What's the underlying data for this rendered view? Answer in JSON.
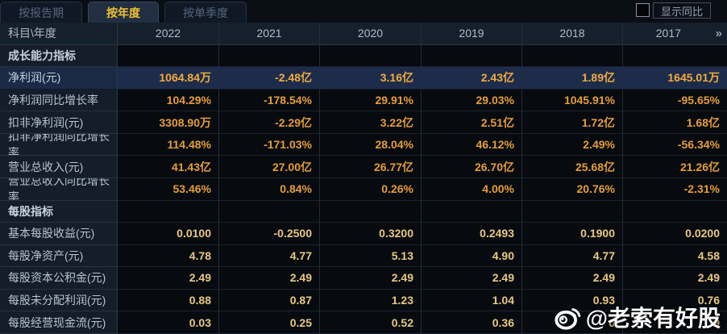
{
  "tabs": {
    "items": [
      {
        "label": "按报告期",
        "active": false
      },
      {
        "label": "按年度",
        "active": true
      },
      {
        "label": "按单季度",
        "active": false
      }
    ]
  },
  "controls": {
    "show_yoy_label": "显示同比",
    "checkbox_checked": false
  },
  "table": {
    "corner_label": "科目\\年度",
    "years": [
      "2022",
      "2021",
      "2020",
      "2019",
      "2018",
      "2017"
    ],
    "more_years_icon": "»",
    "rows": [
      {
        "type": "section",
        "label": "成长能力指标",
        "values": [
          "",
          "",
          "",
          "",
          "",
          ""
        ]
      },
      {
        "type": "highlight",
        "label": "净利润(元)",
        "values": [
          "1064.84万",
          "-2.48亿",
          "3.16亿",
          "2.43亿",
          "1.89亿",
          "1645.01万"
        ]
      },
      {
        "type": "growth",
        "label": "净利润同比增长率",
        "values": [
          "104.29%",
          "-178.54%",
          "29.91%",
          "29.03%",
          "1045.91%",
          "-95.65%"
        ]
      },
      {
        "type": "growth",
        "label": "扣非净利润(元)",
        "values": [
          "3308.90万",
          "-2.29亿",
          "3.22亿",
          "2.51亿",
          "1.72亿",
          "1.68亿"
        ]
      },
      {
        "type": "growth",
        "label": "扣非净利润同比增长率",
        "values": [
          "114.48%",
          "-171.03%",
          "28.04%",
          "46.12%",
          "2.49%",
          "-56.34%"
        ]
      },
      {
        "type": "growth",
        "label": "营业总收入(元)",
        "values": [
          "41.43亿",
          "27.00亿",
          "26.77亿",
          "26.70亿",
          "25.68亿",
          "21.26亿"
        ]
      },
      {
        "type": "growth",
        "label": "营业总收入同比增长率",
        "values": [
          "53.46%",
          "0.84%",
          "0.26%",
          "4.00%",
          "20.76%",
          "-2.31%"
        ]
      },
      {
        "type": "section",
        "label": "每股指标",
        "values": [
          "",
          "",
          "",
          "",
          "",
          ""
        ]
      },
      {
        "type": "pershare",
        "label": "基本每股收益(元)",
        "values": [
          "0.0100",
          "-0.2500",
          "0.3200",
          "0.2493",
          "0.1900",
          "0.0200"
        ]
      },
      {
        "type": "pershare",
        "label": "每股净资产(元)",
        "values": [
          "4.78",
          "4.77",
          "5.13",
          "4.90",
          "4.77",
          "4.58"
        ]
      },
      {
        "type": "pershare",
        "label": "每股资本公积金(元)",
        "values": [
          "2.49",
          "2.49",
          "2.49",
          "2.49",
          "2.49",
          "2.49"
        ]
      },
      {
        "type": "pershare",
        "label": "每股未分配利润(元)",
        "values": [
          "0.88",
          "0.87",
          "1.23",
          "1.04",
          "0.93",
          "0.76"
        ]
      },
      {
        "type": "pershare",
        "label": "每股经营现金流(元)",
        "values": [
          "0.03",
          "0.25",
          "0.52",
          "0.36",
          "0",
          "9"
        ],
        "note": "2018 and 2017 cells partially obscured by watermark; only fragments visible"
      }
    ]
  },
  "watermark": {
    "text": "@老索有好股",
    "icon": "weibo-logo"
  },
  "colors": {
    "value_gold": "#e69d38",
    "highlight_value_gold": "#f3ab3e",
    "pershare_gold": "#e9c87f",
    "highlight_row_bg": "#1d2c4a",
    "tab_active_text": "#f0c233",
    "label_column_bg": "#141d29"
  }
}
